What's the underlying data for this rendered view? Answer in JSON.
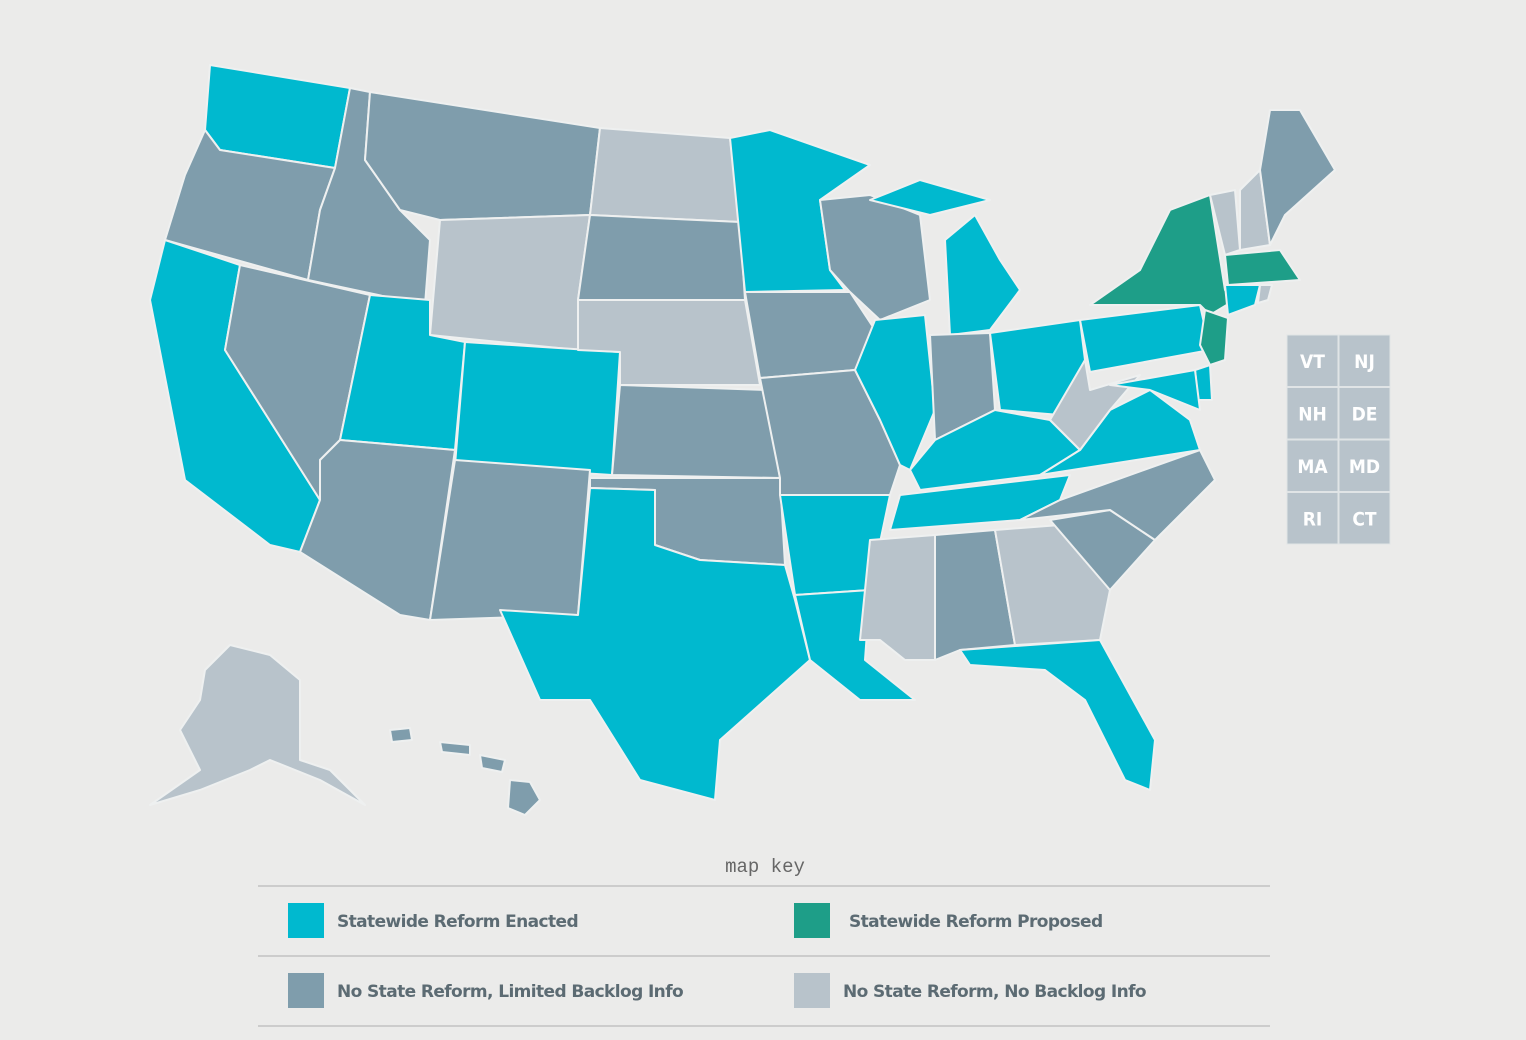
{
  "small_states": {
    "labels": [
      "VT",
      "NJ",
      "NH",
      "DE",
      "MA",
      "MD",
      "RI",
      "CT"
    ]
  },
  "map_key": {
    "title": "map key",
    "items": [
      {
        "label": "Statewide Reform Enacted",
        "color": "#00b9cf"
      },
      {
        "label": "Statewide Reform Proposed",
        "color": "#1e9e88"
      },
      {
        "label": "No State Reform, Limited Backlog Info",
        "color": "#7f9dac"
      },
      {
        "label": "No State Reform, No Backlog Info",
        "color": "#b8c3cb"
      }
    ]
  }
}
